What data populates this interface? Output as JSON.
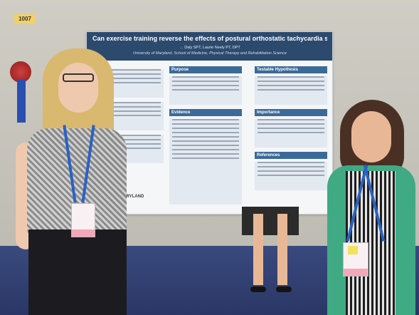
{
  "booth": {
    "number": "1007"
  },
  "poster": {
    "title": "Can exercise training reverse the effects of postural orthostatic tachycardia syndrome?",
    "authors": "… Daly SPT, Laurie Neely PT, DPT",
    "affiliation": "University of Maryland, School of Medicine, Physical Therapy and Rehabilitation Science",
    "sections": {
      "purpose": "Purpose",
      "evidence": "Evidence",
      "testable_hypothesis": "Testable Hypothesis",
      "importance": "Importance",
      "references": "References"
    },
    "logo_text": "…SITY of MARYLAND"
  }
}
